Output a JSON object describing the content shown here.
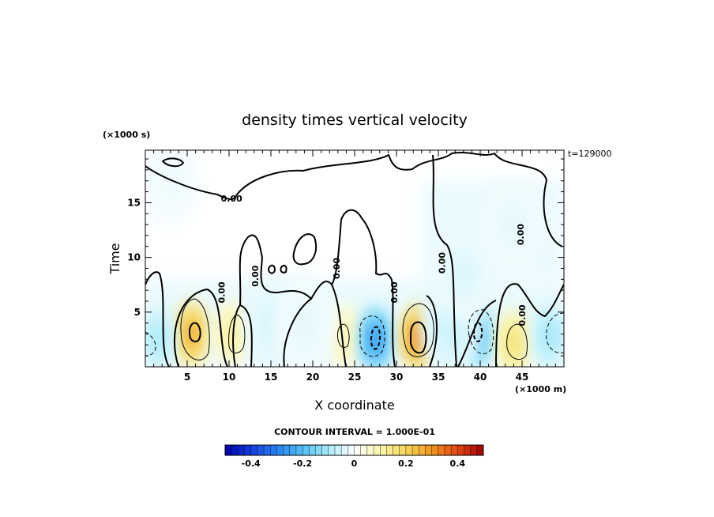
{
  "chart_data": {
    "type": "heatmap",
    "title": "density times vertical velocity",
    "xlabel": "X coordinate",
    "ylabel": "Time",
    "x_unit": "(×1000 m)",
    "y_unit": "(×1000 s)",
    "timestamp": "t=129000",
    "contour_interval_text": "CONTOUR INTERVAL = 1.000E-01",
    "xlim": [
      0,
      50
    ],
    "ylim": [
      0,
      19.8
    ],
    "x_ticks": [
      5,
      10,
      15,
      20,
      25,
      30,
      35,
      40,
      45
    ],
    "y_ticks": [
      5,
      10,
      15
    ],
    "colorbar": {
      "range": [
        -0.5,
        0.5
      ],
      "tick_values": [
        -0.4,
        -0.2,
        0,
        0.2,
        0.4
      ],
      "tick_labels": [
        "-0.4",
        "-0.2",
        "0",
        "0.2",
        "0.4"
      ]
    },
    "zero_contour_labels": [
      {
        "text": "0.00",
        "x": 9.5,
        "y": 6.8
      },
      {
        "text": "0.00",
        "x": 13.5,
        "y": 8.3
      },
      {
        "text": "0.00",
        "x": 10.3,
        "y": 15.1
      },
      {
        "text": "0.00",
        "x": 23.2,
        "y": 9.0
      },
      {
        "text": "0.00",
        "x": 30.1,
        "y": 6.8
      },
      {
        "text": "0.00",
        "x": 35.8,
        "y": 9.5
      },
      {
        "text": "0.00",
        "x": 45.4,
        "y": 4.7
      },
      {
        "text": "0.00",
        "x": 45.2,
        "y": 12.1
      }
    ],
    "anomalies": [
      {
        "x": 5.5,
        "y": 3.0,
        "value": 0.27
      },
      {
        "x": 10.3,
        "y": 3.0,
        "value": 0.12
      },
      {
        "x": 23.7,
        "y": 2.8,
        "value": 0.1
      },
      {
        "x": 27.5,
        "y": 2.5,
        "value": -0.26
      },
      {
        "x": 32.5,
        "y": 2.7,
        "value": 0.33
      },
      {
        "x": 39.6,
        "y": 2.8,
        "value": -0.22
      },
      {
        "x": 44.0,
        "y": 2.2,
        "value": 0.17
      },
      {
        "x": 1.5,
        "y": 2.5,
        "value": -0.1
      },
      {
        "x": 48.3,
        "y": 2.8,
        "value": -0.11
      },
      {
        "x": 15.5,
        "y": 3.8,
        "value": -0.05
      },
      {
        "x": 19.0,
        "y": 3.8,
        "value": -0.03
      },
      {
        "x": 36.5,
        "y": 3.5,
        "value": -0.06
      },
      {
        "x": 38.0,
        "y": 8.5,
        "value": -0.04
      },
      {
        "x": 44.0,
        "y": 13.0,
        "value": -0.03
      },
      {
        "x": 3.0,
        "y": 17.0,
        "value": -0.02
      }
    ]
  }
}
